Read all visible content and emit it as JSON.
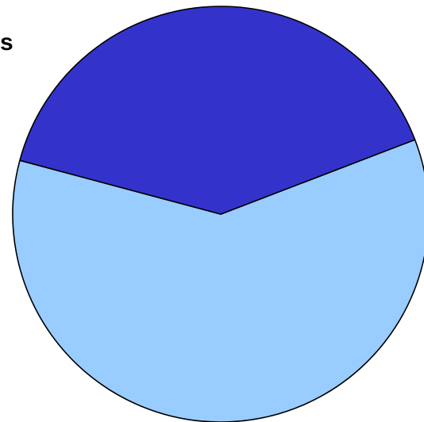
{
  "fragment_text": "s",
  "chart_data": {
    "type": "pie",
    "slices": [
      {
        "value": 60,
        "color": "#99ccff"
      },
      {
        "value": 40,
        "color": "#3333cc"
      }
    ],
    "start_angle_deg": -21,
    "direction": "clockwise",
    "title": "",
    "legend": "none",
    "outline_color": "#000000"
  }
}
